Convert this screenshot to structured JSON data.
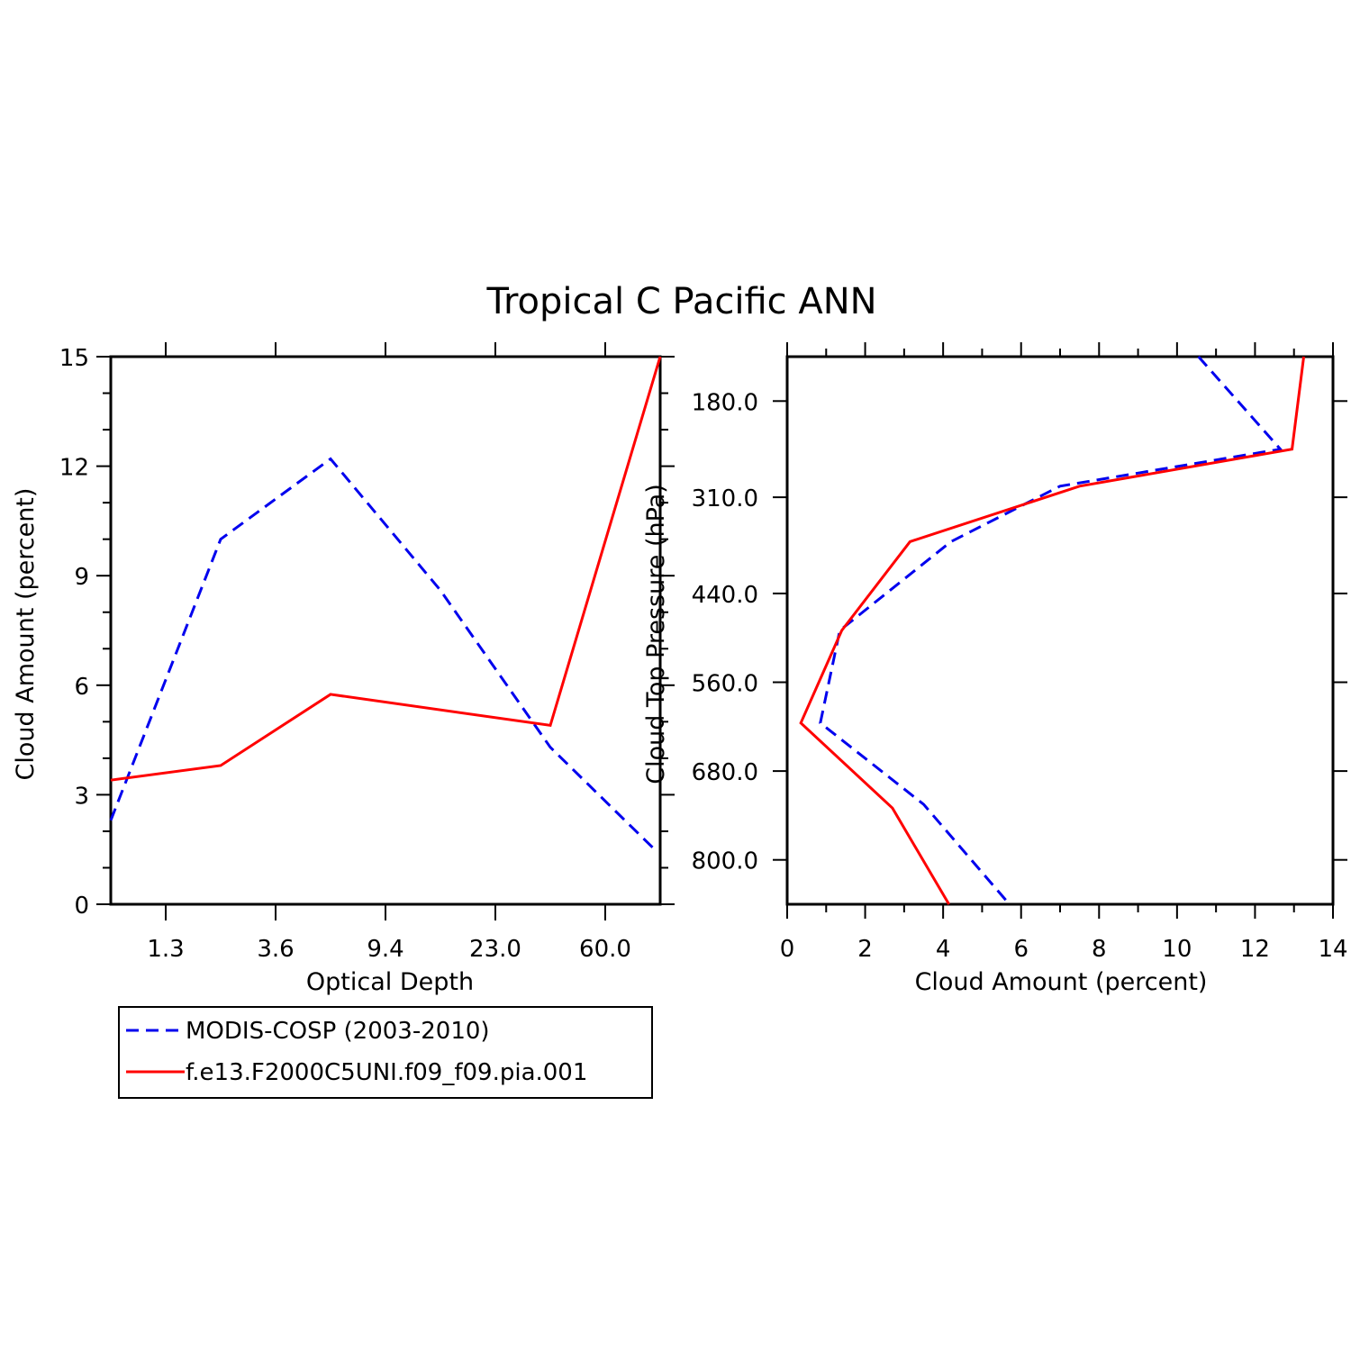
{
  "title": "Tropical C Pacific ANN",
  "chart_data": [
    {
      "type": "line",
      "id": "left",
      "xlabel": "Optical Depth",
      "ylabel": "Cloud Amount (percent)",
      "x": [
        0,
        1,
        2,
        3,
        4,
        5
      ],
      "xlim": [
        -0.5,
        4.5
      ],
      "ylim": [
        0,
        15
      ],
      "x_ticks": [
        {
          "x": 0,
          "label": "1.3"
        },
        {
          "x": 1,
          "label": "3.6"
        },
        {
          "x": 2,
          "label": "9.4"
        },
        {
          "x": 3,
          "label": "23.0"
        },
        {
          "x": 4,
          "label": "60.0"
        }
      ],
      "y_ticks": [
        {
          "y": 0,
          "label": "0"
        },
        {
          "y": 3,
          "label": "3"
        },
        {
          "y": 6,
          "label": "6"
        },
        {
          "y": 9,
          "label": "9"
        },
        {
          "y": 12,
          "label": "12"
        },
        {
          "y": 15,
          "label": "15"
        }
      ],
      "series": [
        {
          "name": "MODIS-COSP (2003-2010)",
          "color": "#0000ee",
          "dashed": true,
          "points": [
            [
              -0.5,
              2.3
            ],
            [
              0.5,
              10.0
            ],
            [
              1.5,
              12.2
            ],
            [
              2.5,
              8.6
            ],
            [
              3.5,
              4.3
            ],
            [
              4.45,
              1.5
            ]
          ]
        },
        {
          "name": "f.e13.F2000C5UNI.f09_f09.pia.001",
          "color": "#ff0000",
          "dashed": false,
          "points": [
            [
              -0.5,
              3.4
            ],
            [
              0.5,
              3.8
            ],
            [
              1.5,
              5.75
            ],
            [
              3.5,
              4.9
            ],
            [
              4.5,
              15.0
            ]
          ]
        }
      ]
    },
    {
      "type": "line",
      "id": "right",
      "xlabel": "Cloud Amount (percent)",
      "ylabel": "Cloud Top Pressure (hPa)",
      "xlim": [
        0,
        14
      ],
      "ylim": [
        860,
        120
      ],
      "x_ticks": [
        {
          "x": 0,
          "label": "0"
        },
        {
          "x": 2,
          "label": "2"
        },
        {
          "x": 4,
          "label": "4"
        },
        {
          "x": 6,
          "label": "6"
        },
        {
          "x": 8,
          "label": "8"
        },
        {
          "x": 10,
          "label": "10"
        },
        {
          "x": 12,
          "label": "12"
        },
        {
          "x": 14,
          "label": "14"
        }
      ],
      "y_ticks": [
        {
          "y": 180,
          "label": "180.0"
        },
        {
          "y": 310,
          "label": "310.0"
        },
        {
          "y": 440,
          "label": "440.0"
        },
        {
          "y": 560,
          "label": "560.0"
        },
        {
          "y": 680,
          "label": "680.0"
        },
        {
          "y": 800,
          "label": "800.0"
        }
      ],
      "series": [
        {
          "name": "MODIS-COSP (2003-2010)",
          "color": "#0000ee",
          "dashed": true,
          "points": [
            [
              10.55,
              120
            ],
            [
              12.65,
              245
            ],
            [
              7.0,
              295
            ],
            [
              4.2,
              370
            ],
            [
              1.35,
              490
            ],
            [
              0.85,
              615
            ],
            [
              3.5,
              725
            ],
            [
              5.7,
              860
            ]
          ]
        },
        {
          "name": "f.e13.F2000C5UNI.f09_f09.pia.001",
          "color": "#ff0000",
          "dashed": false,
          "points": [
            [
              13.25,
              120
            ],
            [
              12.95,
              245
            ],
            [
              7.5,
              295
            ],
            [
              3.15,
              370
            ],
            [
              1.4,
              490
            ],
            [
              0.35,
              615
            ],
            [
              2.7,
              730
            ],
            [
              4.15,
              860
            ]
          ]
        }
      ]
    }
  ],
  "legend": [
    {
      "label": "MODIS-COSP (2003-2010)",
      "color": "#0000ee",
      "dashed": true
    },
    {
      "label": "f.e13.F2000C5UNI.f09_f09.pia.001",
      "color": "#ff0000",
      "dashed": false
    }
  ]
}
